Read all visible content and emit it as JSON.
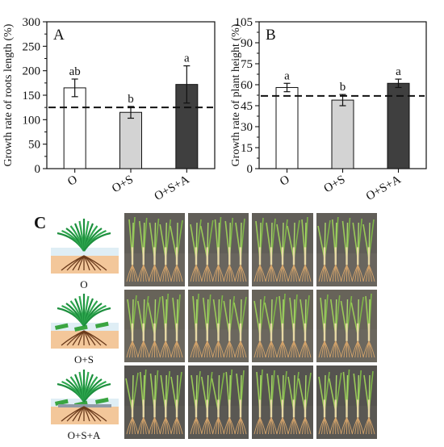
{
  "chart_data": [
    {
      "type": "bar",
      "panel_label": "A",
      "categories": [
        "O",
        "O+S",
        "O+S+A"
      ],
      "values": [
        165,
        115,
        172
      ],
      "errors": [
        18,
        12,
        38
      ],
      "significance": [
        "ab",
        "b",
        "a"
      ],
      "bar_colors": [
        "#ffffff",
        "#d3d3d3",
        "#3f3f3f"
      ],
      "reference_line": 125,
      "ylabel": "Growth rate of roots length (%)",
      "xlabel": "",
      "ylim": [
        0,
        300
      ],
      "yticks": [
        0,
        50,
        100,
        150,
        200,
        250,
        300
      ],
      "grid": false
    },
    {
      "type": "bar",
      "panel_label": "B",
      "categories": [
        "O",
        "O+S",
        "O+S+A"
      ],
      "values": [
        58,
        49,
        61
      ],
      "errors": [
        3,
        4,
        3
      ],
      "significance": [
        "a",
        "b",
        "a"
      ],
      "bar_colors": [
        "#ffffff",
        "#d3d3d3",
        "#3f3f3f"
      ],
      "reference_line": 52,
      "ylabel": "Growth rate of plant height (%)",
      "xlabel": "",
      "ylim": [
        0,
        105
      ],
      "yticks": [
        0,
        15,
        30,
        45,
        60,
        75,
        90,
        105
      ],
      "grid": false
    }
  ],
  "panel_c": {
    "label": "C",
    "rows": [
      {
        "treatment": "O"
      },
      {
        "treatment": "O+S"
      },
      {
        "treatment": "O+S+A"
      }
    ],
    "photos_per_row": 4
  }
}
